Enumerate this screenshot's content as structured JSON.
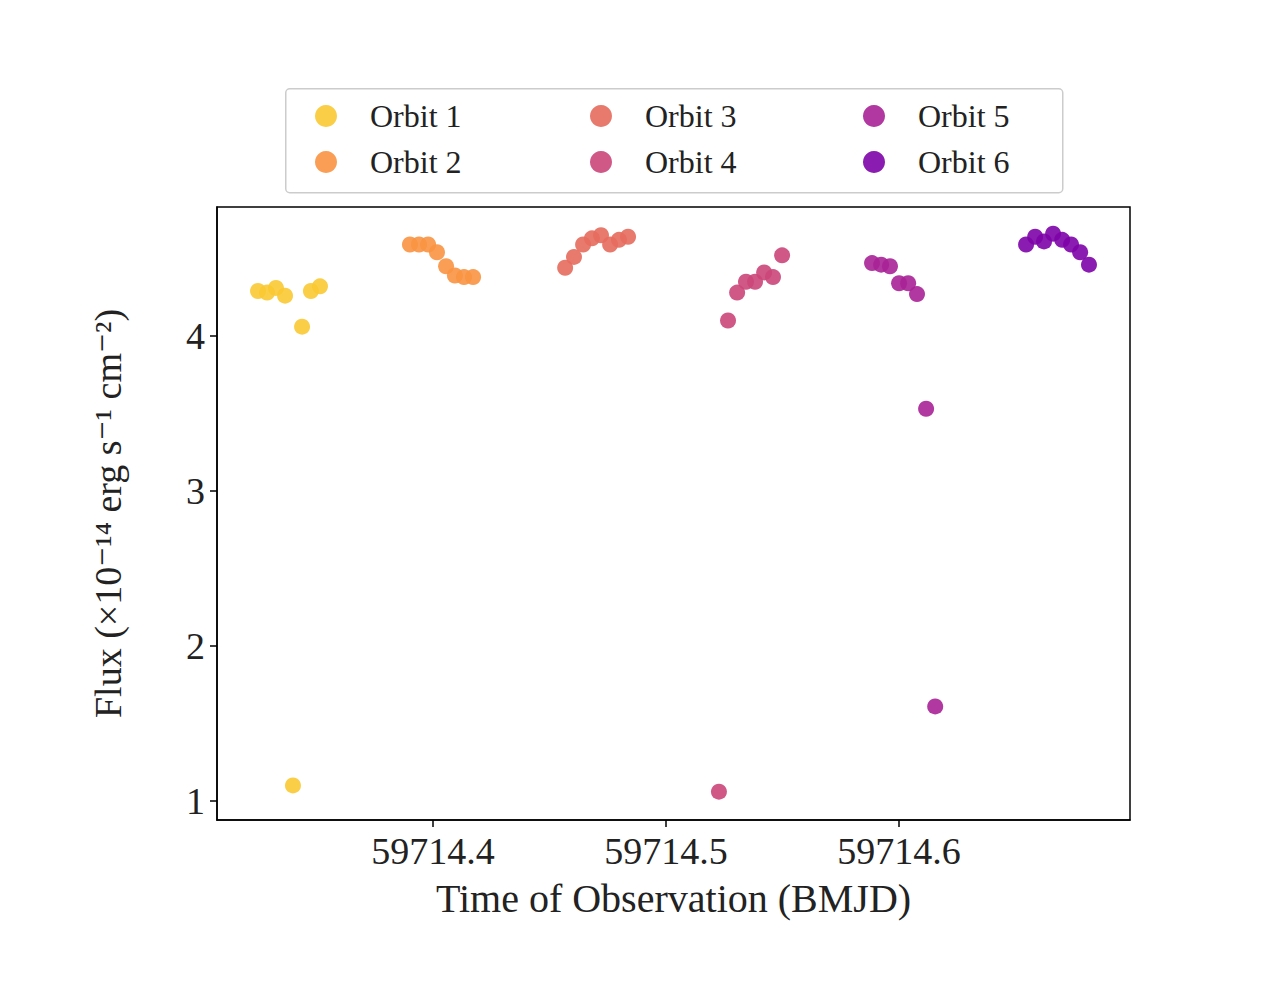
{
  "chart_data": {
    "type": "scatter",
    "x_label": "Time of Observation (BMJD)",
    "y_label": "Flux (×10⁻¹⁴ erg s⁻¹ cm⁻²)",
    "xlim": [
      59714.3073,
      59714.6991
    ],
    "ylim": [
      0.877,
      4.832
    ],
    "xticks": [
      59714.4,
      59714.5,
      59714.6
    ],
    "yticks": [
      1,
      2,
      3,
      4
    ],
    "grid": false,
    "legend": "top",
    "marker": "circle",
    "series": [
      {
        "name": "Orbit 1",
        "color": "#f9c932",
        "x": [
          59714.3249,
          59714.3288,
          59714.3326,
          59714.3365,
          59714.3399,
          59714.3438,
          59714.3476,
          59714.3515
        ],
        "values": [
          4.29,
          4.28,
          4.31,
          4.26,
          1.1,
          4.06,
          4.29,
          4.32
        ]
      },
      {
        "name": "Orbit 2",
        "color": "#f89441",
        "x": [
          59714.3901,
          59714.394,
          59714.3979,
          59714.4017,
          59714.4056,
          59714.4094,
          59714.4133,
          59714.4172
        ],
        "values": [
          4.59,
          4.59,
          4.59,
          4.54,
          4.45,
          4.39,
          4.38,
          4.38
        ]
      },
      {
        "name": "Orbit 3",
        "color": "#e56b5d",
        "x": [
          59714.4567,
          59714.4605,
          59714.4644,
          59714.4682,
          59714.4721,
          59714.476,
          59714.4798,
          59714.4837
        ],
        "values": [
          4.44,
          4.51,
          4.59,
          4.63,
          4.65,
          4.59,
          4.62,
          4.64
        ]
      },
      {
        "name": "Orbit 4",
        "color": "#cb4679",
        "x": [
          59714.5227,
          59714.5266,
          59714.5305,
          59714.5343,
          59714.5382,
          59714.5421,
          59714.5459,
          59714.5498
        ],
        "values": [
          1.06,
          4.1,
          4.28,
          4.35,
          4.35,
          4.41,
          4.38,
          4.52
        ]
      },
      {
        "name": "Orbit 5",
        "color": "#a82296",
        "x": [
          59714.5884,
          59714.5923,
          59714.5961,
          59714.6,
          59714.6039,
          59714.6077,
          59714.6116,
          59714.6155
        ],
        "values": [
          4.47,
          4.46,
          4.45,
          4.34,
          4.34,
          4.27,
          3.53,
          1.61
        ]
      },
      {
        "name": "Orbit 6",
        "color": "#7e03a8",
        "x": [
          59714.6545,
          59714.6584,
          59714.6622,
          59714.6661,
          59714.67,
          59714.6738,
          59714.6777,
          59714.6815
        ],
        "values": [
          4.59,
          4.64,
          4.61,
          4.66,
          4.62,
          4.59,
          4.54,
          4.46
        ]
      }
    ]
  }
}
